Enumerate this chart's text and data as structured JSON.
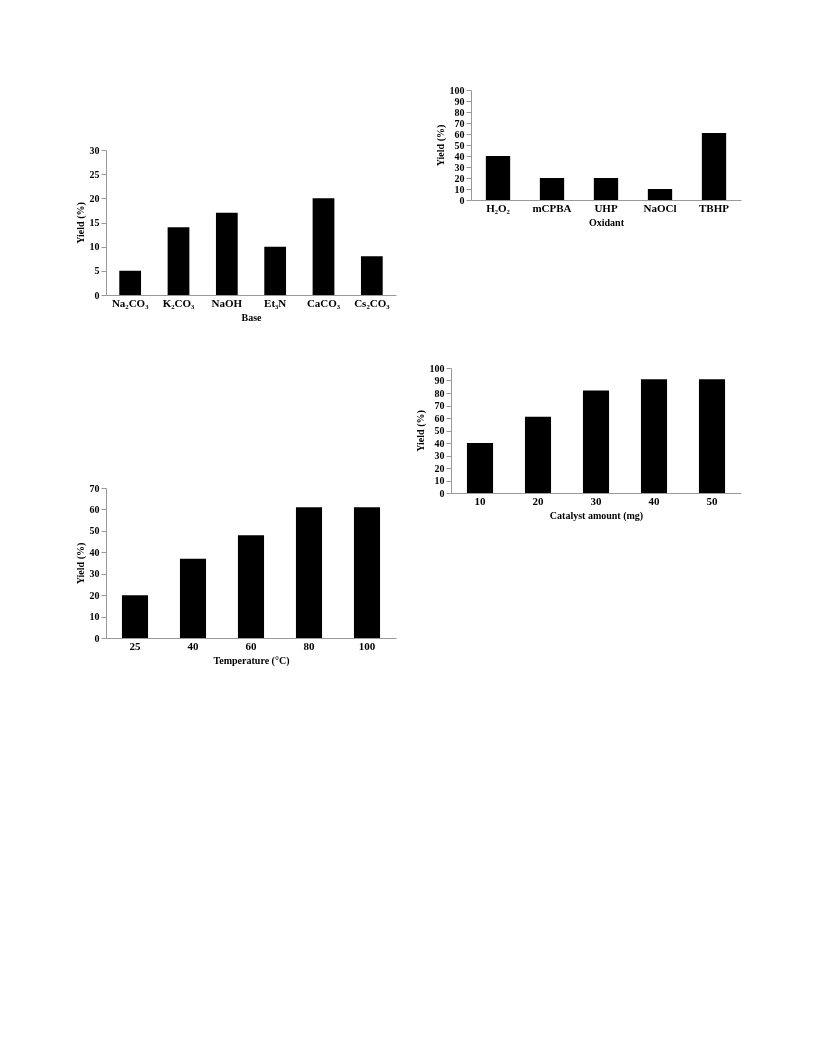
{
  "chart_data": [
    {
      "type": "bar",
      "xlabel": "Base",
      "ylabel": "Yield (%)",
      "categories": [
        "Na₂CO₃",
        "K₂CO₃",
        "NaOH",
        "Et₃N",
        "CaCO₃",
        "Cs₂CO₃"
      ],
      "values": [
        5,
        14,
        17,
        10,
        20,
        8
      ],
      "color": "#000000",
      "ylim": [
        0,
        30
      ],
      "yticks": [
        0,
        5,
        10,
        15,
        20,
        25,
        30
      ]
    },
    {
      "type": "bar",
      "xlabel": "Oxidant",
      "ylabel": "Yield (%)",
      "categories": [
        "H₂O₂",
        "mCPBA",
        "UHP",
        "NaOCl",
        "TBHP"
      ],
      "values": [
        40,
        20,
        20,
        10,
        61
      ],
      "color": "#000000",
      "ylim": [
        0,
        100
      ],
      "yticks": [
        0,
        10,
        20,
        30,
        40,
        50,
        60,
        70,
        80,
        90,
        100
      ]
    },
    {
      "type": "bar",
      "xlabel": "Catalyst amount (mg)",
      "ylabel": "Yield (%)",
      "categories": [
        "10",
        "20",
        "30",
        "40",
        "50"
      ],
      "values": [
        40,
        61,
        82,
        91,
        91
      ],
      "color": "#000000",
      "ylim": [
        0,
        100
      ],
      "yticks": [
        0,
        10,
        20,
        30,
        40,
        50,
        60,
        70,
        80,
        90,
        100
      ]
    },
    {
      "type": "bar",
      "xlabel": "Temperature (°C)",
      "ylabel": "Yield (%)",
      "categories": [
        "25",
        "40",
        "60",
        "80",
        "100"
      ],
      "values": [
        20,
        37,
        48,
        61,
        61
      ],
      "color": "#000000",
      "ylim": [
        0,
        70
      ],
      "yticks": [
        0,
        10,
        20,
        30,
        40,
        50,
        60,
        70
      ]
    }
  ]
}
